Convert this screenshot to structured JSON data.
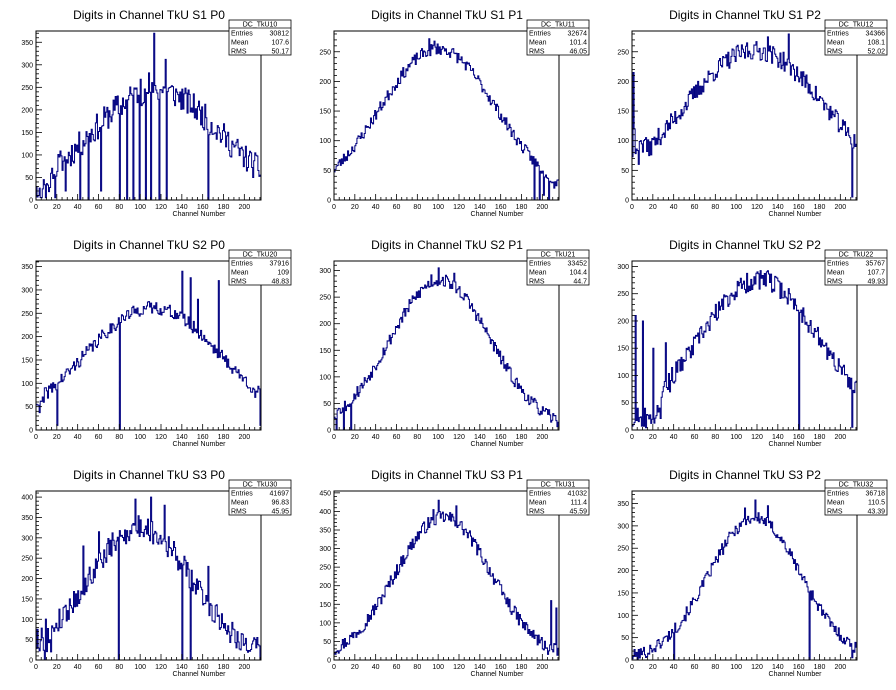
{
  "chart_data": [
    {
      "type": "histogram",
      "title": "Digits in Channel TkU S1 P0",
      "xlabel": "Channel Number",
      "ylabel": "",
      "xlim": [
        0,
        216
      ],
      "ylim": [
        0,
        375
      ],
      "xticks": [
        0,
        20,
        40,
        60,
        80,
        100,
        120,
        140,
        160,
        180,
        200
      ],
      "yticks": [
        0,
        50,
        100,
        150,
        200,
        250,
        300,
        350
      ],
      "stats": {
        "name": "DC_TkU10",
        "rows": [
          [
            "Entries",
            "30812"
          ],
          [
            "Mean",
            "107.6"
          ],
          [
            "RMS",
            "50.17"
          ]
        ]
      },
      "color": "#000080",
      "profile": {
        "peak": 245,
        "center": 115,
        "sigma": 62,
        "noise": 30,
        "seed": 11,
        "edge": {
          "to": 20,
          "scale": 0.7
        },
        "gaps": [
          [
            0,
            30
          ],
          [
            2,
            10
          ],
          [
            5,
            5
          ],
          [
            9,
            5
          ],
          [
            18,
            5
          ],
          [
            28,
            20
          ],
          [
            42,
            0
          ],
          [
            50,
            0
          ],
          [
            62,
            20
          ],
          [
            80,
            0
          ],
          [
            87,
            0
          ],
          [
            93,
            0
          ],
          [
            99,
            0
          ],
          [
            105,
            0
          ],
          [
            110,
            0
          ],
          [
            118,
            0
          ],
          [
            125,
            0
          ],
          [
            165,
            0
          ]
        ],
        "spikes": [
          [
            113,
            370
          ],
          [
            124,
            312
          ],
          [
            108,
            282
          ],
          [
            100,
            268
          ]
        ]
      }
    },
    {
      "type": "histogram",
      "title": "Digits in Channel TkU S1 P1",
      "xlabel": "Channel Number",
      "ylabel": "",
      "xlim": [
        0,
        216
      ],
      "ylim": [
        0,
        285
      ],
      "xticks": [
        0,
        20,
        40,
        60,
        80,
        100,
        120,
        140,
        160,
        180,
        200
      ],
      "yticks": [
        0,
        50,
        100,
        150,
        200,
        250
      ],
      "stats": {
        "name": "DC_TkU11",
        "rows": [
          [
            "Entries",
            "32674"
          ],
          [
            "Mean",
            "101.4"
          ],
          [
            "RMS",
            "46.05"
          ]
        ]
      },
      "color": "#000080",
      "profile": {
        "peak": 255,
        "center": 100,
        "sigma": 56,
        "noise": 10,
        "seed": 23,
        "gaps": [
          [
            192,
            0
          ],
          [
            197,
            0
          ],
          [
            201,
            8
          ],
          [
            206,
            0
          ],
          [
            211,
            20
          ]
        ],
        "spikes": [
          [
            91,
            272
          ],
          [
            96,
            268
          ]
        ]
      }
    },
    {
      "type": "histogram",
      "title": "Digits in Channel TkU S1 P2",
      "xlabel": "Channel Number",
      "ylabel": "",
      "xlim": [
        0,
        216
      ],
      "ylim": [
        0,
        285
      ],
      "xticks": [
        0,
        20,
        40,
        60,
        80,
        100,
        120,
        140,
        160,
        180,
        200
      ],
      "yticks": [
        0,
        50,
        100,
        150,
        200,
        250
      ],
      "stats": {
        "name": "DC_TkU12",
        "rows": [
          [
            "Entries",
            "34366"
          ],
          [
            "Mean",
            "108.1"
          ],
          [
            "RMS",
            "52.02"
          ]
        ]
      },
      "color": "#000080",
      "profile": {
        "peak": 252,
        "center": 118,
        "sigma": 70,
        "noise": 16,
        "seed": 37,
        "edge": {
          "to": 14,
          "scale": 1.3
        },
        "gaps": [
          [
            211,
            5
          ],
          [
            2,
            120
          ],
          [
            6,
            60
          ]
        ],
        "spikes": [
          [
            1,
            215
          ],
          [
            110,
            265
          ],
          [
            130,
            275
          ],
          [
            150,
            280
          ]
        ]
      }
    },
    {
      "type": "histogram",
      "title": "Digits in Channel TkU S2 P0",
      "xlabel": "Channel Number",
      "ylabel": "",
      "xlim": [
        0,
        216
      ],
      "ylim": [
        0,
        362
      ],
      "xticks": [
        0,
        20,
        40,
        60,
        80,
        100,
        120,
        140,
        160,
        180,
        200
      ],
      "yticks": [
        0,
        50,
        100,
        150,
        200,
        250,
        300,
        350
      ],
      "stats": {
        "name": "DC_TkU20",
        "rows": [
          [
            "Entries",
            "37916"
          ],
          [
            "Mean",
            "109"
          ],
          [
            "RMS",
            "48.83"
          ]
        ]
      },
      "color": "#000080",
      "profile": {
        "peak": 262,
        "center": 112,
        "sigma": 66,
        "noise": 14,
        "seed": 41,
        "edge": {
          "to": 8,
          "scale": 0.8
        },
        "gaps": [
          [
            80,
            0
          ],
          [
            20,
            10
          ],
          [
            215,
            10
          ]
        ],
        "spikes": [
          [
            140,
            340
          ],
          [
            148,
            326
          ],
          [
            155,
            280
          ],
          [
            175,
            320
          ],
          [
            210,
            70
          ]
        ]
      }
    },
    {
      "type": "histogram",
      "title": "Digits in Channel TkU S2 P1",
      "xlabel": "Channel Number",
      "ylabel": "",
      "xlim": [
        0,
        216
      ],
      "ylim": [
        0,
        318
      ],
      "xticks": [
        0,
        20,
        40,
        60,
        80,
        100,
        120,
        140,
        160,
        180,
        200
      ],
      "yticks": [
        0,
        50,
        100,
        150,
        200,
        250,
        300
      ],
      "stats": {
        "name": "DC_TkU21",
        "rows": [
          [
            "Entries",
            "33452"
          ],
          [
            "Mean",
            "104.4"
          ],
          [
            "RMS",
            "44.7"
          ]
        ]
      },
      "color": "#000080",
      "profile": {
        "peak": 282,
        "center": 102,
        "sigma": 48,
        "noise": 12,
        "seed": 53,
        "gaps": [
          [
            2,
            0
          ],
          [
            5,
            40
          ],
          [
            9,
            0
          ],
          [
            12,
            45
          ],
          [
            16,
            0
          ]
        ],
        "spikes": [
          [
            100,
            305
          ],
          [
            93,
            292
          ],
          [
            115,
            295
          ]
        ]
      }
    },
    {
      "type": "histogram",
      "title": "Digits in Channel TkU S2 P2",
      "xlabel": "Channel Number",
      "ylabel": "",
      "xlim": [
        0,
        216
      ],
      "ylim": [
        0,
        310
      ],
      "xticks": [
        0,
        20,
        40,
        60,
        80,
        100,
        120,
        140,
        160,
        180,
        200
      ],
      "yticks": [
        0,
        50,
        100,
        150,
        200,
        250,
        300
      ],
      "stats": {
        "name": "DC_TkU22",
        "rows": [
          [
            "Entries",
            "35767"
          ],
          [
            "Mean",
            "107.7"
          ],
          [
            "RMS",
            "49.93"
          ]
        ]
      },
      "color": "#000080",
      "profile": {
        "peak": 275,
        "center": 122,
        "sigma": 58,
        "noise": 18,
        "seed": 67,
        "edge": {
          "to": 28,
          "scale": 0.5
        },
        "gaps": [
          [
            160,
            0
          ],
          [
            211,
            5
          ],
          [
            3,
            210
          ],
          [
            5,
            40
          ],
          [
            10,
            200
          ],
          [
            20,
            150
          ],
          [
            24,
            45
          ],
          [
            32,
            160
          ],
          [
            36,
            70
          ]
        ],
        "spikes": [
          [
            130,
            292
          ],
          [
            120,
            290
          ]
        ]
      }
    },
    {
      "type": "histogram",
      "title": "Digits in Channel TkU S3 P0",
      "xlabel": "Channel Number",
      "ylabel": "",
      "xlim": [
        0,
        216
      ],
      "ylim": [
        0,
        415
      ],
      "xticks": [
        0,
        20,
        40,
        60,
        80,
        100,
        120,
        140,
        160,
        180,
        200
      ],
      "yticks": [
        0,
        50,
        100,
        150,
        200,
        250,
        300,
        350,
        400
      ],
      "stats": {
        "name": "DC_TkU30",
        "rows": [
          [
            "Entries",
            "41697"
          ],
          [
            "Mean",
            "96.83"
          ],
          [
            "RMS",
            "45.95"
          ]
        ]
      },
      "color": "#000080",
      "profile": {
        "peak": 325,
        "center": 100,
        "sigma": 50,
        "noise": 30,
        "seed": 79,
        "edge": {
          "to": 16,
          "scale": 1.0
        },
        "gaps": [
          [
            79,
            0
          ],
          [
            140,
            0
          ],
          [
            148,
            0
          ],
          [
            8,
            0
          ],
          [
            14,
            20
          ]
        ],
        "spikes": [
          [
            110,
            400
          ],
          [
            95,
            395
          ],
          [
            123,
            380
          ],
          [
            60,
            315
          ],
          [
            45,
            280
          ],
          [
            165,
            230
          ]
        ]
      }
    },
    {
      "type": "histogram",
      "title": "Digits in Channel TkU S3 P1",
      "xlabel": "Channel Number",
      "ylabel": "",
      "xlim": [
        0,
        216
      ],
      "ylim": [
        0,
        455
      ],
      "xticks": [
        0,
        20,
        40,
        60,
        80,
        100,
        120,
        140,
        160,
        180,
        200
      ],
      "yticks": [
        0,
        50,
        100,
        150,
        200,
        250,
        300,
        350,
        400,
        450
      ],
      "stats": {
        "name": "DC_TkU31",
        "rows": [
          [
            "Entries",
            "41032"
          ],
          [
            "Mean",
            "111.4"
          ],
          [
            "RMS",
            "45.59"
          ]
        ]
      },
      "color": "#000080",
      "profile": {
        "peak": 385,
        "center": 105,
        "sigma": 46,
        "noise": 18,
        "seed": 97,
        "gaps": [
          [
            200,
            30
          ],
          [
            205,
            15
          ]
        ],
        "spikes": [
          [
            100,
            430
          ],
          [
            117,
            415
          ],
          [
            95,
            405
          ],
          [
            208,
            160
          ],
          [
            213,
            140
          ]
        ]
      }
    },
    {
      "type": "histogram",
      "title": "Digits in Channel TkU S3 P2",
      "xlabel": "Channel Number",
      "ylabel": "",
      "xlim": [
        0,
        216
      ],
      "ylim": [
        0,
        378
      ],
      "xticks": [
        0,
        20,
        40,
        60,
        80,
        100,
        120,
        140,
        160,
        180,
        200
      ],
      "yticks": [
        0,
        50,
        100,
        150,
        200,
        250,
        300,
        350
      ],
      "stats": {
        "name": "DC_TkU32",
        "rows": [
          [
            "Entries",
            "36718"
          ],
          [
            "Mean",
            "110.5"
          ],
          [
            "RMS",
            "43.39"
          ]
        ]
      },
      "color": "#000080",
      "profile": {
        "peak": 318,
        "center": 118,
        "sigma": 44,
        "noise": 14,
        "seed": 101,
        "gaps": [
          [
            40,
            0
          ],
          [
            170,
            0
          ],
          [
            211,
            5
          ],
          [
            15,
            15
          ]
        ],
        "spikes": [
          [
            118,
            358
          ],
          [
            130,
            345
          ],
          [
            108,
            340
          ]
        ]
      }
    }
  ]
}
